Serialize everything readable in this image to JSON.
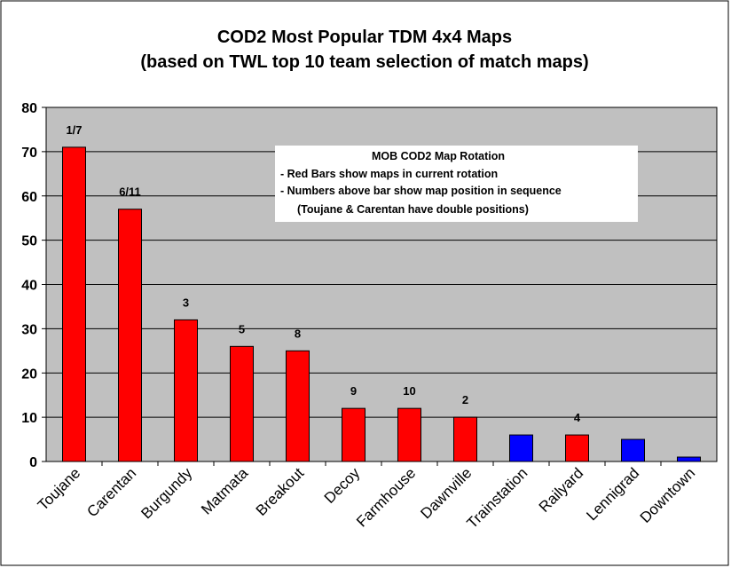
{
  "chart_data": {
    "type": "bar",
    "title": "COD2 Most Popular TDM 4x4 Maps",
    "subtitle": "(based on TWL top 10 team selection of match maps)",
    "xlabel": "",
    "ylabel": "",
    "ylim": [
      0,
      80
    ],
    "yticks": [
      0,
      10,
      20,
      30,
      40,
      50,
      60,
      70,
      80
    ],
    "grid": true,
    "categories": [
      "Toujane",
      "Carentan",
      "Burgundy",
      "Matmata",
      "Breakout",
      "Decoy",
      "Farmhouse",
      "Dawnville",
      "Trainstation",
      "Railyard",
      "Lennigrad",
      "Downtown"
    ],
    "values": [
      71,
      57,
      32,
      26,
      25,
      12,
      12,
      10,
      6,
      6,
      5,
      1
    ],
    "bar_labels": [
      "1/7",
      "6/11",
      "3",
      "5",
      "8",
      "9",
      "10",
      "2",
      "",
      "4",
      "",
      ""
    ],
    "in_rotation": [
      true,
      true,
      true,
      true,
      true,
      true,
      true,
      true,
      false,
      true,
      false,
      false
    ],
    "colors": {
      "in_rotation": "#ff0000",
      "not_in_rotation": "#0000ff",
      "plot_background": "#c0c0c0"
    },
    "annotation": {
      "title": "MOB COD2 Map Rotation",
      "lines": [
        "- Red Bars show maps in current rotation",
        "- Numbers above bar show map position in sequence",
        "(Toujane & Carentan have double positions)"
      ]
    }
  }
}
